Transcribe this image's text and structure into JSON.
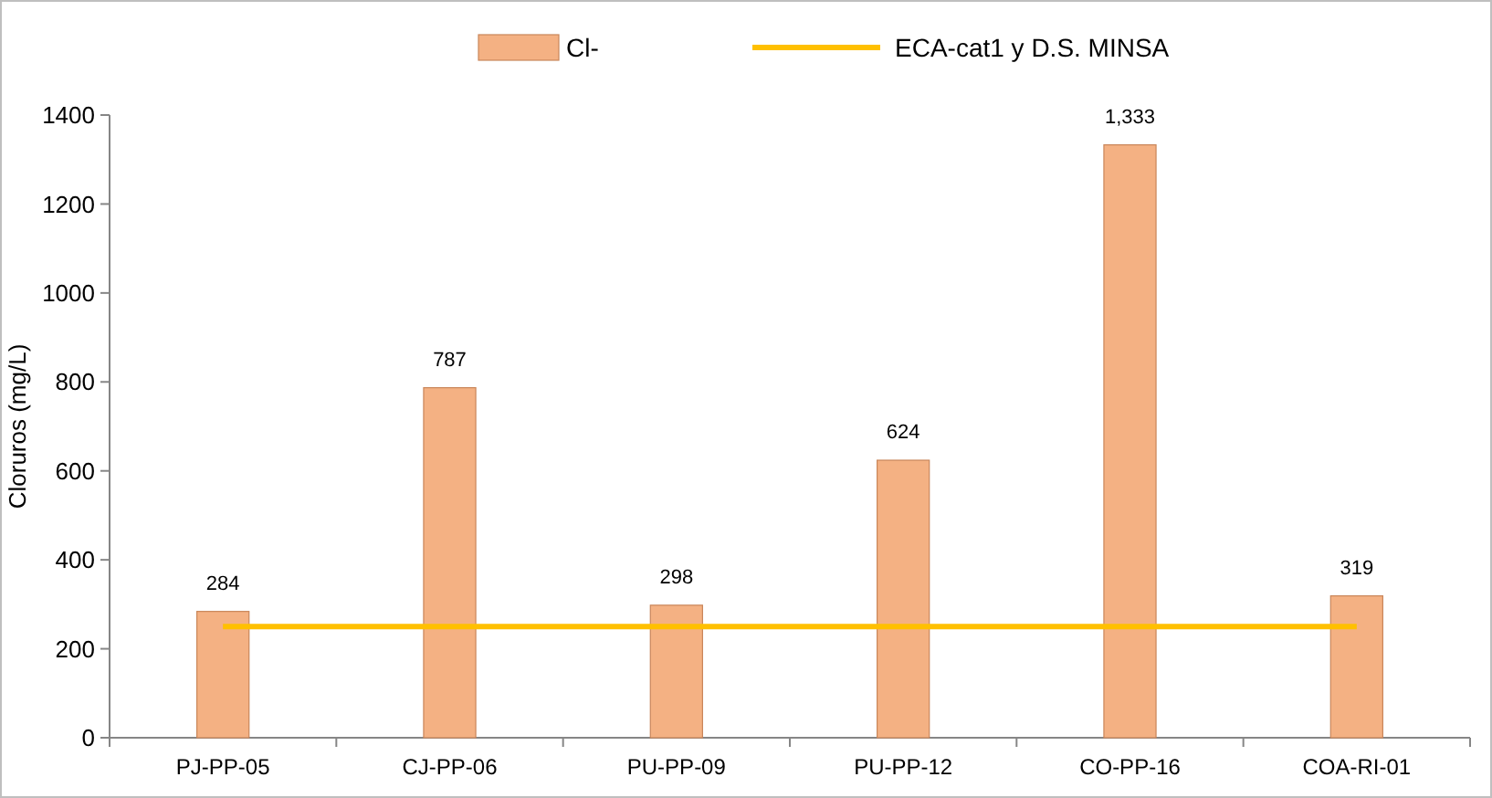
{
  "chart_data": {
    "type": "bar",
    "ylabel": "Cloruros (mg/L)",
    "categories": [
      "PJ-PP-05",
      "CJ-PP-06",
      "PU-PP-09",
      "PU-PP-12",
      "CO-PP-16",
      "COA-RI-01"
    ],
    "series": [
      {
        "name": "Cl-",
        "color": "#f4b183",
        "values": [
          284,
          787,
          298,
          624,
          1333,
          319
        ],
        "value_labels": [
          "284",
          "787",
          "298",
          "624",
          "1,333",
          "319"
        ]
      },
      {
        "name": "ECA-cat1 y D.S. MINSA",
        "type": "line",
        "color": "#ffc000",
        "values": [
          250,
          250,
          250,
          250,
          250,
          250
        ]
      }
    ],
    "ylim": [
      0,
      1400
    ],
    "yticks": [
      0,
      200,
      400,
      600,
      800,
      1000,
      1200,
      1400
    ],
    "grid": false,
    "legend": "top",
    "marker": "none",
    "line_style": "solid"
  }
}
